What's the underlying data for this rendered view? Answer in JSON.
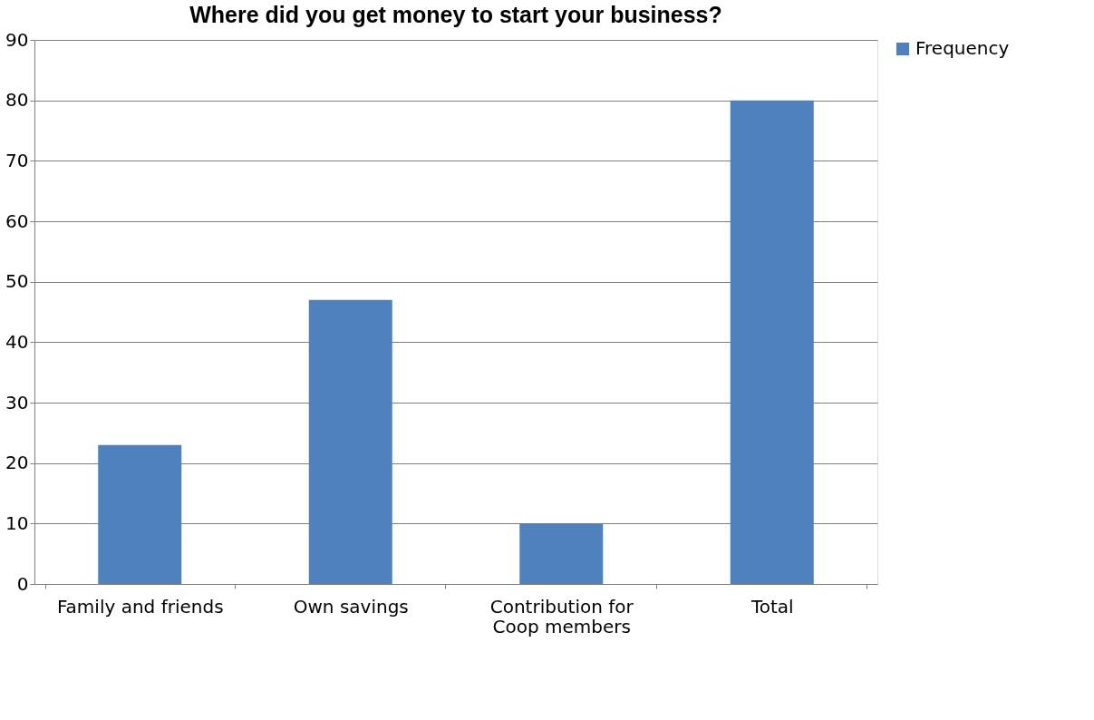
{
  "chart_data": {
    "type": "bar",
    "title": "Where did you get money to start your business?",
    "categories": [
      "Family and friends",
      "Own savings",
      "Contribution for Coop members",
      "Total"
    ],
    "series": [
      {
        "name": "Frequency",
        "color": "#4f81bd",
        "values": [
          23,
          47,
          10,
          80
        ]
      }
    ],
    "ylim": [
      0,
      90
    ],
    "yticks": [
      0,
      10,
      20,
      30,
      40,
      50,
      60,
      70,
      80,
      90
    ],
    "grid": "y",
    "legend": "right"
  }
}
